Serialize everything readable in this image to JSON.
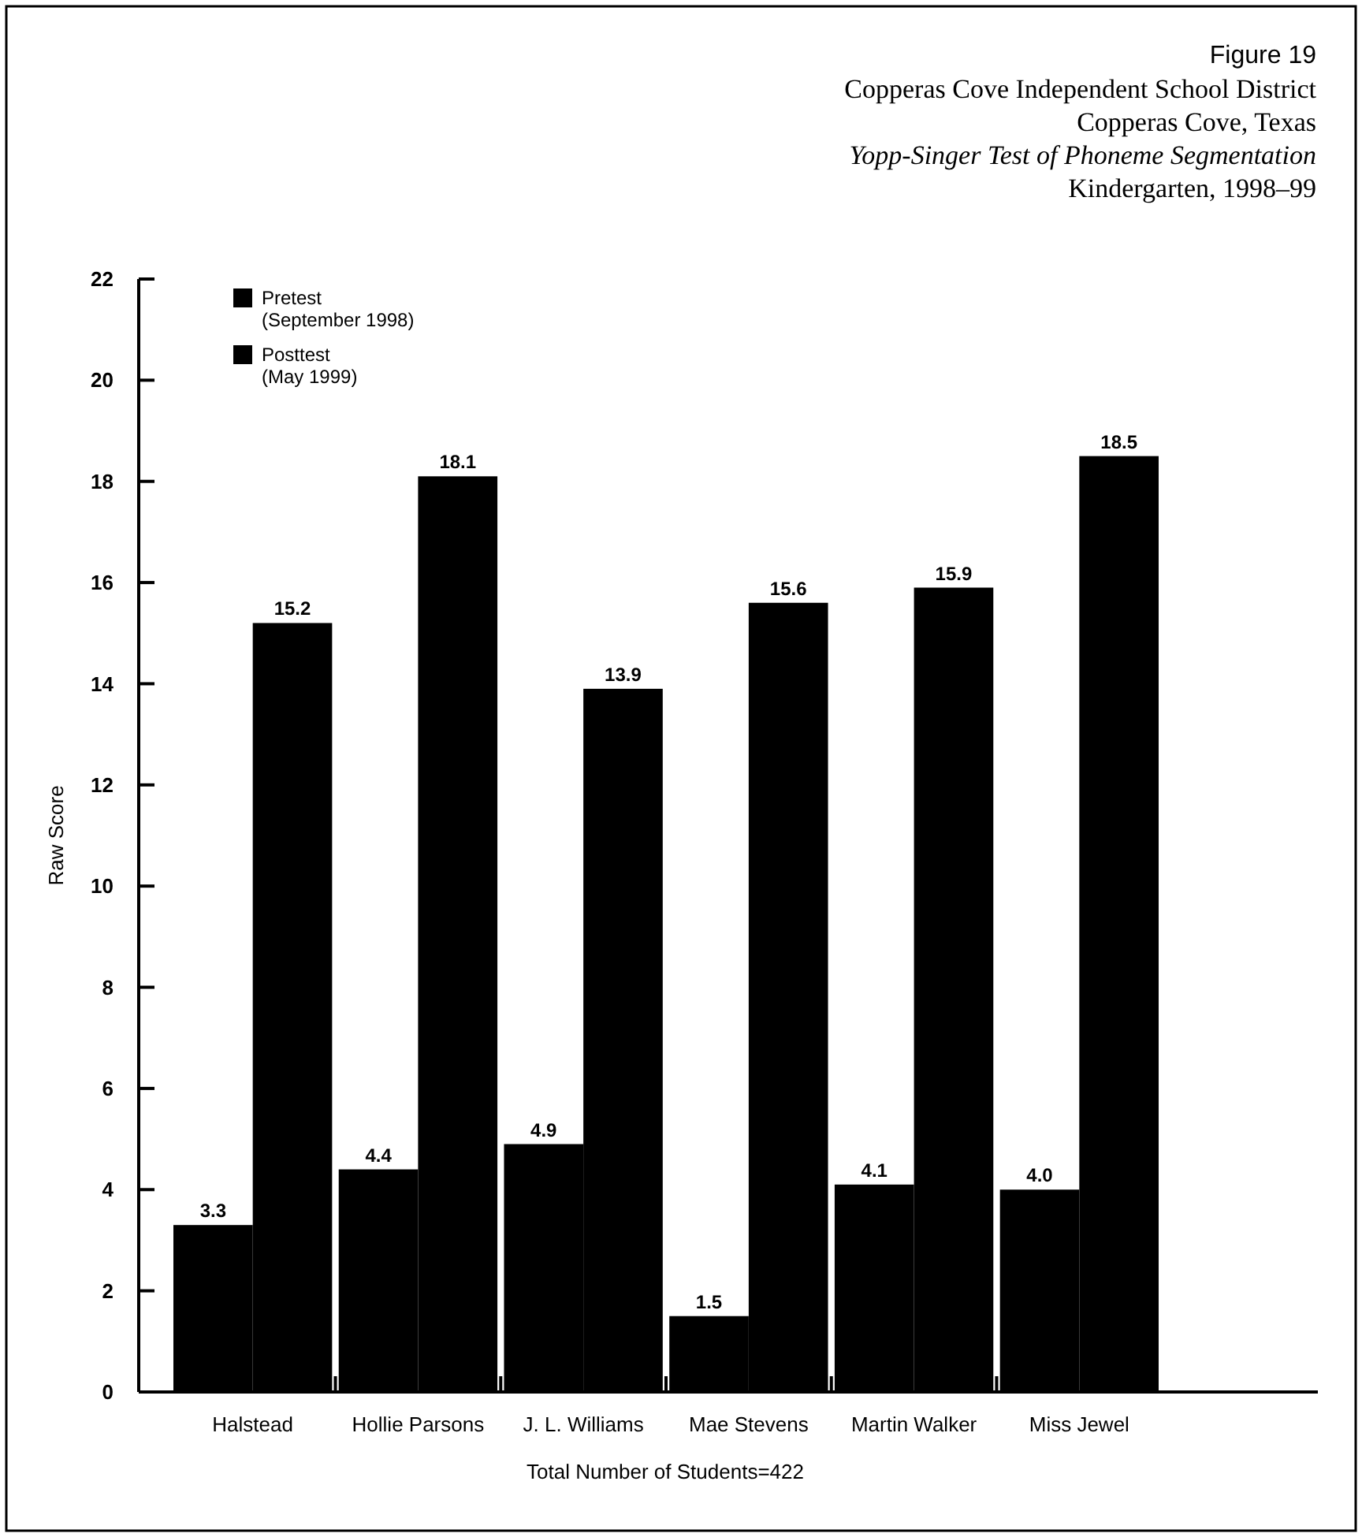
{
  "chart_data": {
    "type": "bar",
    "title": "Figure 19",
    "subtitle": "Copperas Cove Independent School District\nCopperas Cove, Texas\nYopp-Singer Test of Phoneme Segmentation\nKindergarten, 1998–99",
    "ylabel": "Raw Score",
    "xlabel": "Total Number of Students=422",
    "categories": [
      "Halstead",
      "Hollie Parsons",
      "J. L. Williams",
      "Mae Stevens",
      "Martin Walker",
      "Miss Jewel"
    ],
    "series": [
      {
        "name": "Pretest\n(September 1998)",
        "color": "#000000",
        "values": [
          3.3,
          4.4,
          4.9,
          1.5,
          4.1,
          4.0
        ]
      },
      {
        "name": "Posttest\n(May 1999)",
        "color": "#000000",
        "values": [
          15.2,
          18.1,
          13.9,
          15.6,
          15.9,
          18.5
        ]
      }
    ],
    "value_labels": [
      [
        "3.3",
        "4.4",
        "4.9",
        "1.5",
        "4.1",
        "4.0"
      ],
      [
        "15.2",
        "18.1",
        "13.9",
        "15.6",
        "15.9",
        "18.5"
      ]
    ],
    "ylim": [
      0,
      22
    ],
    "yticks": [
      0,
      2,
      4,
      6,
      8,
      10,
      12,
      14,
      16,
      18,
      20,
      22
    ],
    "grid": false,
    "legend": "top left"
  }
}
